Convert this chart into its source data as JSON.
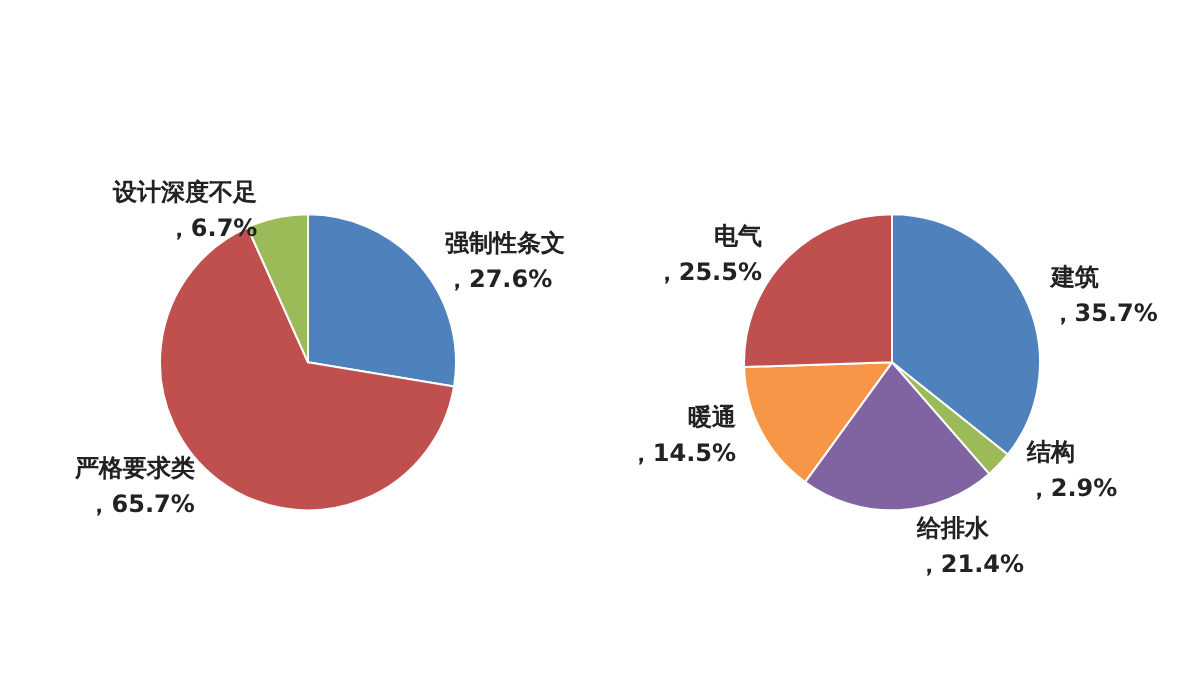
{
  "chart_data": [
    {
      "type": "pie",
      "categories": [
        "强制性条文",
        "严格要求类",
        "设计深度不足"
      ],
      "values": [
        27.6,
        65.7,
        6.7
      ],
      "colors": [
        "#4f81bd",
        "#c0504d",
        "#9bbb59"
      ],
      "value_labels": [
        "，27.6%",
        "，65.7%",
        "，6.7%"
      ],
      "legend": false
    },
    {
      "type": "pie",
      "categories": [
        "建筑",
        "结构",
        "给排水",
        "暖通",
        "电气"
      ],
      "values": [
        35.7,
        2.9,
        21.4,
        14.5,
        25.5
      ],
      "colors": [
        "#4f81bd",
        "#9bbb59",
        "#8064a2",
        "#f79646",
        "#c0504d"
      ],
      "value_labels": [
        "，35.7%",
        "，2.9%",
        "，21.4%",
        "，14.5%",
        "，25.5%"
      ],
      "legend": false
    }
  ]
}
